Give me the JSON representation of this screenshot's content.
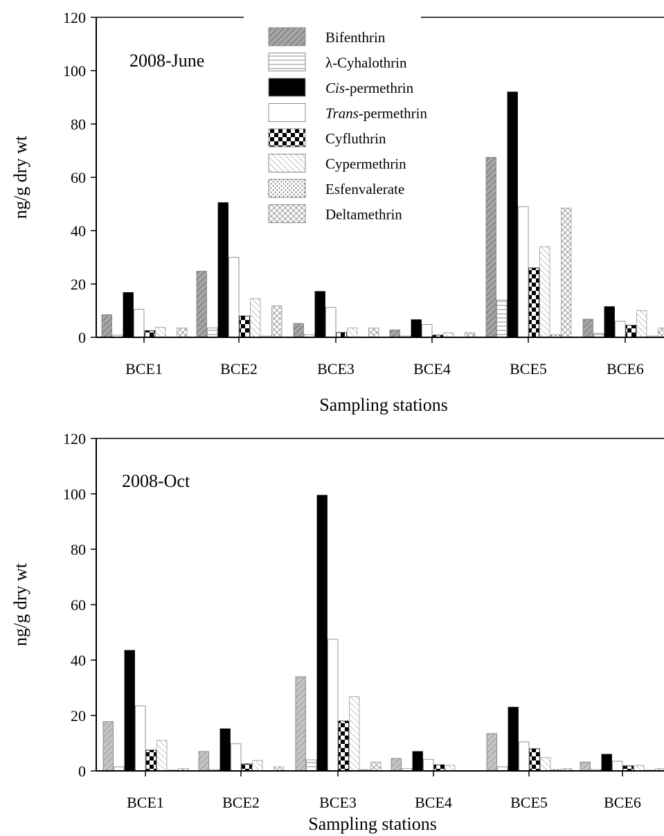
{
  "colors": {
    "bifenthrin": "#a0a0a0",
    "bifenthrin_light": "#b8b8b8",
    "black": "#000000",
    "white": "#ffffff",
    "hatch_gray": "#9a9a9a"
  },
  "legend": {
    "items": [
      {
        "key": "bif",
        "label": "Bifenthrin",
        "italic_prefix": "",
        "pattern": "diag-dark"
      },
      {
        "key": "lam",
        "label": "λ-Cyhalothrin",
        "italic_prefix": "",
        "pattern": "horiz"
      },
      {
        "key": "cis",
        "label": "-permethrin",
        "italic_prefix": "Cis",
        "pattern": "solid-black"
      },
      {
        "key": "trans",
        "label": "-permethrin",
        "italic_prefix": "Trans",
        "pattern": "white"
      },
      {
        "key": "cyf",
        "label": "Cyfluthrin",
        "italic_prefix": "",
        "pattern": "checker"
      },
      {
        "key": "cyp",
        "label": "Cypermethrin",
        "italic_prefix": "",
        "pattern": "diag-light"
      },
      {
        "key": "esf",
        "label": "Esfenvalerate",
        "italic_prefix": "",
        "pattern": "dots"
      },
      {
        "key": "del",
        "label": "Deltamethrin",
        "italic_prefix": "",
        "pattern": "crosshatch"
      }
    ]
  },
  "chart_data": [
    {
      "type": "bar",
      "panel_label": "2008-June",
      "xlabel": "Sampling stations",
      "ylabel": "ng/g dry wt",
      "ylim": [
        0,
        120
      ],
      "yticks": [
        0,
        20,
        40,
        60,
        80,
        100,
        120
      ],
      "categories": [
        "BCE1",
        "BCE2",
        "BCE3",
        "BCE4",
        "BCE5",
        "BCE6"
      ],
      "series": [
        {
          "name": "Bifenthrin",
          "values": [
            8.5,
            24.8,
            5.2,
            2.8,
            67.5,
            6.8
          ]
        },
        {
          "name": "λ-Cyhalothrin",
          "values": [
            0.8,
            3.5,
            1.0,
            0.5,
            14.0,
            1.5
          ]
        },
        {
          "name": "Cis-permethrin",
          "values": [
            16.8,
            50.5,
            17.2,
            6.6,
            92.0,
            11.5
          ]
        },
        {
          "name": "Trans-permethrin",
          "values": [
            10.5,
            30.0,
            11.2,
            4.8,
            49.0,
            6.0
          ]
        },
        {
          "name": "Cyfluthrin",
          "values": [
            2.5,
            8.0,
            1.8,
            0.8,
            26.0,
            4.5
          ]
        },
        {
          "name": "Cypermethrin",
          "values": [
            3.8,
            14.5,
            3.5,
            1.7,
            34.0,
            10.0
          ]
        },
        {
          "name": "Esfenvalerate",
          "values": [
            0,
            0.5,
            0,
            0,
            1.0,
            0.5
          ]
        },
        {
          "name": "Deltamethrin",
          "values": [
            3.5,
            11.8,
            3.5,
            1.7,
            48.5,
            3.5
          ]
        }
      ]
    },
    {
      "type": "bar",
      "panel_label": "2008-Oct",
      "xlabel": "Sampling stations",
      "ylabel": "ng/g dry wt",
      "ylim": [
        0,
        120
      ],
      "yticks": [
        0,
        20,
        40,
        60,
        80,
        100,
        120
      ],
      "categories": [
        "BCE1",
        "BCE2",
        "BCE3",
        "BCE4",
        "BCE5",
        "BCE6"
      ],
      "series": [
        {
          "name": "Bifenthrin",
          "values": [
            17.8,
            7.0,
            34.0,
            4.5,
            13.5,
            3.2
          ]
        },
        {
          "name": "λ-Cyhalothrin",
          "values": [
            1.5,
            0.5,
            4.0,
            0.8,
            1.5,
            0.5
          ]
        },
        {
          "name": "Cis-permethrin",
          "values": [
            43.5,
            15.2,
            99.5,
            7.0,
            23.0,
            6.0
          ]
        },
        {
          "name": "Trans-permethrin",
          "values": [
            23.5,
            9.8,
            47.5,
            4.2,
            10.5,
            3.5
          ]
        },
        {
          "name": "Cyfluthrin",
          "values": [
            7.5,
            2.5,
            18.0,
            2.2,
            8.0,
            1.8
          ]
        },
        {
          "name": "Cypermethrin",
          "values": [
            11.0,
            3.8,
            26.8,
            2.0,
            4.8,
            2.0
          ]
        },
        {
          "name": "Esfenvalerate",
          "values": [
            0.3,
            0,
            0.5,
            0,
            0.5,
            0.3
          ]
        },
        {
          "name": "Deltamethrin",
          "values": [
            0.8,
            1.5,
            3.2,
            0,
            0.8,
            0.8
          ]
        }
      ]
    }
  ]
}
